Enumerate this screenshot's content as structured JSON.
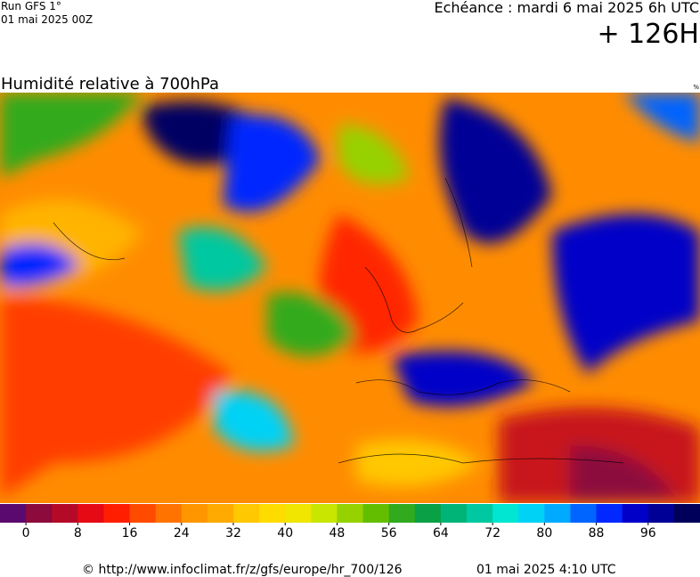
{
  "header": {
    "run": "Run GFS 1°",
    "run_date": "01 mai 2025 00Z",
    "valid": "Echéance : mardi 6 mai 2025 6h UTC",
    "lead": "+ 126H"
  },
  "map": {
    "title": "Humidité relative à 700hPa",
    "unit": "%"
  },
  "legend": {
    "colors": [
      "#5a0a6e",
      "#8c0a3c",
      "#b40a28",
      "#e60a14",
      "#ff1e00",
      "#ff4b00",
      "#ff7300",
      "#ff9600",
      "#ffaa00",
      "#ffc800",
      "#ffdc00",
      "#f0e600",
      "#c8e600",
      "#96d200",
      "#64be00",
      "#32aa1e",
      "#0aa046",
      "#00b478",
      "#00c8a0",
      "#00e6d2",
      "#00d2f5",
      "#00aaff",
      "#0064ff",
      "#0028ff",
      "#0000c8",
      "#000096",
      "#00005a"
    ],
    "step": 4,
    "ticks": [
      0,
      8,
      16,
      24,
      32,
      40,
      48,
      56,
      64,
      72,
      80,
      88,
      96
    ]
  },
  "footer": {
    "source": "© http://www.infoclimat.fr/z/gfs/europe/hr_700/126",
    "generated": "01 mai 2025  4:10 UTC"
  }
}
